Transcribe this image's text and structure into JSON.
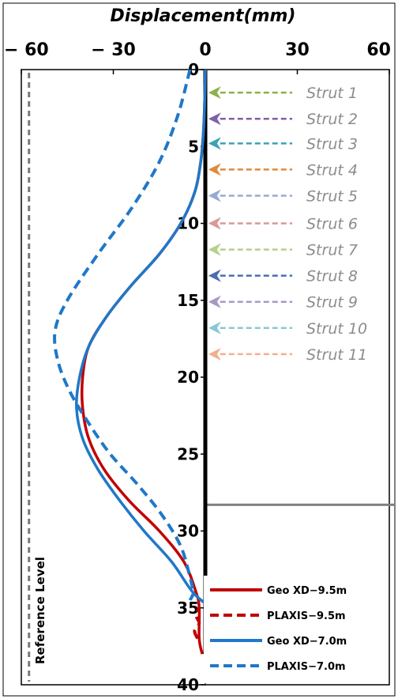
{
  "chart_data": {
    "type": "line",
    "title": "Displacement(mm)",
    "xlabel": "Displacement(mm)",
    "ylabel": "",
    "x_axis_position": "top",
    "xlim": [
      -60,
      60
    ],
    "ylim": [
      40,
      0
    ],
    "x_ticks": [
      "-60",
      "-30",
      "0",
      "30",
      "60"
    ],
    "x_tick_values": [
      -60,
      -30,
      0,
      30,
      60
    ],
    "y_ticks": [
      "0",
      "5",
      "10",
      "15",
      "20",
      "25",
      "30",
      "35",
      "40"
    ],
    "y_tick_values": [
      0,
      5,
      10,
      15,
      20,
      25,
      30,
      35,
      40
    ],
    "grid": false,
    "legend_position": "bottom-right",
    "reference_line": {
      "label": "Reference Level",
      "x": -57.5,
      "color": "#7a7a7a"
    },
    "excavation_level": {
      "depth": 28.3,
      "color": "#808080"
    },
    "wall_line": {
      "x": 0,
      "y_from": 0,
      "y_to": 38,
      "color": "#000000"
    },
    "struts": [
      {
        "label": "Strut 1",
        "depth": 1.5,
        "color": "#8db04a"
      },
      {
        "label": "Strut 2",
        "depth": 3.2,
        "color": "#7f5fa8"
      },
      {
        "label": "Strut 3",
        "depth": 4.8,
        "color": "#3aa3b5"
      },
      {
        "label": "Strut 4",
        "depth": 6.5,
        "color": "#e08a3b"
      },
      {
        "label": "Strut 5",
        "depth": 8.2,
        "color": "#97aad4"
      },
      {
        "label": "Strut 6",
        "depth": 10.0,
        "color": "#d89897"
      },
      {
        "label": "Strut 7",
        "depth": 11.7,
        "color": "#b8cf8e"
      },
      {
        "label": "Strut 8",
        "depth": 13.4,
        "color": "#4a6fb0"
      },
      {
        "label": "Strut 9",
        "depth": 15.1,
        "color": "#a898c6"
      },
      {
        "label": "Strut 10",
        "depth": 16.8,
        "color": "#88c7d6"
      },
      {
        "label": "Strut 11",
        "depth": 18.5,
        "color": "#f2b08f"
      }
    ],
    "series": [
      {
        "name": "Geo XD-9.5m",
        "color": "#c00000",
        "dash": "solid",
        "points": [
          [
            0,
            0
          ],
          [
            -0.2,
            2
          ],
          [
            -0.6,
            4
          ],
          [
            -1.5,
            6
          ],
          [
            -3.5,
            8
          ],
          [
            -8,
            10
          ],
          [
            -15,
            12
          ],
          [
            -24,
            14
          ],
          [
            -32,
            16
          ],
          [
            -38,
            18
          ],
          [
            -40,
            20
          ],
          [
            -40,
            22
          ],
          [
            -38,
            24
          ],
          [
            -33,
            26
          ],
          [
            -25,
            28
          ],
          [
            -15,
            30
          ],
          [
            -7,
            32
          ],
          [
            -3,
            34
          ],
          [
            -2,
            35
          ],
          [
            -2,
            37
          ],
          [
            -1,
            38
          ]
        ]
      },
      {
        "name": "PLAXIS-9.5m",
        "color": "#c00000",
        "dash": "dashed",
        "points": [
          [
            -2.5,
            37
          ],
          [
            -3.5,
            36.5
          ],
          [
            -2,
            36
          ],
          [
            -3,
            35.5
          ],
          [
            -2,
            35
          ]
        ]
      },
      {
        "name": "Geo XD-7.0m",
        "color": "#1f78c8",
        "dash": "solid",
        "points": [
          [
            0,
            0
          ],
          [
            -0.2,
            2
          ],
          [
            -0.6,
            4
          ],
          [
            -1.5,
            6
          ],
          [
            -3.5,
            8
          ],
          [
            -8,
            10
          ],
          [
            -15,
            12
          ],
          [
            -24,
            14
          ],
          [
            -32,
            16
          ],
          [
            -38,
            18
          ],
          [
            -41,
            20
          ],
          [
            -42,
            22
          ],
          [
            -40,
            24
          ],
          [
            -35,
            26
          ],
          [
            -28,
            28
          ],
          [
            -20,
            30
          ],
          [
            -11,
            32
          ],
          [
            -4,
            34
          ],
          [
            2,
            35
          ],
          [
            6,
            35.5
          ]
        ]
      },
      {
        "name": "PLAXIS-7.0m",
        "color": "#1f78c8",
        "dash": "dashed",
        "points": [
          [
            -5,
            0
          ],
          [
            -9,
            3
          ],
          [
            -15,
            6
          ],
          [
            -24,
            9
          ],
          [
            -35,
            12
          ],
          [
            -45,
            15
          ],
          [
            -49,
            17
          ],
          [
            -48,
            19
          ],
          [
            -44,
            21
          ],
          [
            -38,
            23
          ],
          [
            -31,
            25
          ],
          [
            -22,
            27
          ],
          [
            -14,
            29
          ],
          [
            -8,
            31
          ],
          [
            -5,
            33
          ],
          [
            -4,
            34
          ],
          [
            -5,
            34.5
          ]
        ]
      }
    ]
  }
}
